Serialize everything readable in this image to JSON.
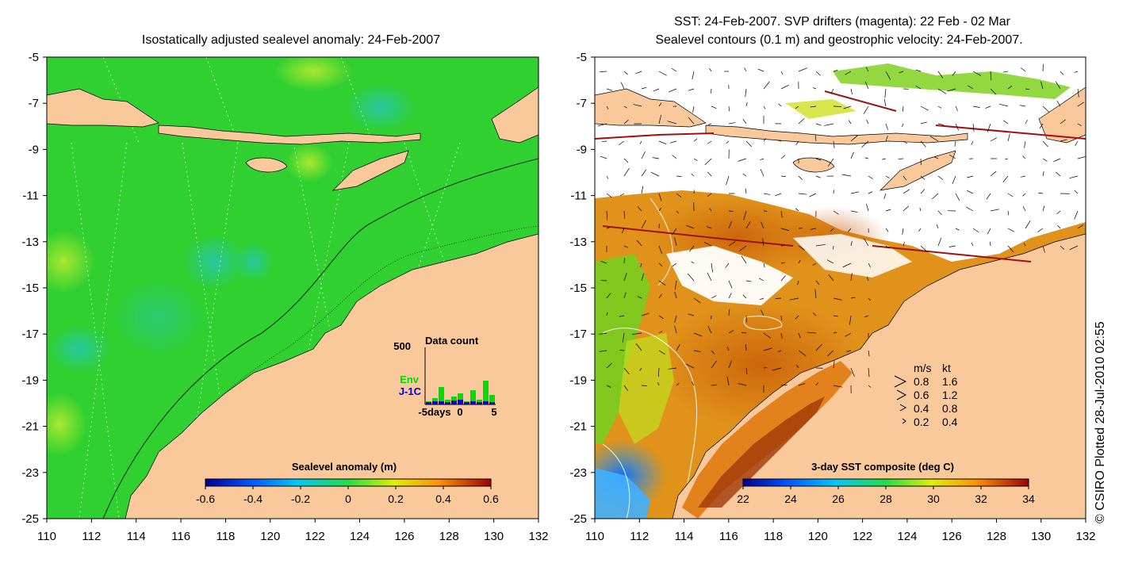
{
  "left_panel": {
    "title": "Isostatically adjusted sealevel anomaly: 24-Feb-2007",
    "colorbar_title": "Sealevel anomaly (m)",
    "colorbar_ticks": [
      "-0.6",
      "-0.4",
      "-0.2",
      "0",
      "0.2",
      "0.4",
      "0.6"
    ],
    "inset": {
      "title": "Data count",
      "ymax": "500",
      "env_label": "Env",
      "j1c_label": "J-1C",
      "xticks": [
        "-5days",
        "0",
        "5"
      ],
      "env_color": "#00dd00",
      "j1c_color": "#0000dd"
    }
  },
  "right_panel": {
    "title_line1": "SST: 24-Feb-2007. SVP drifters (magenta): 22 Feb - 02 Mar",
    "title_line2": "Sealevel contours (0.1 m) and geostrophic velocity: 24-Feb-2007.",
    "colorbar_title": "3-day SST composite (deg C)",
    "colorbar_ticks": [
      "22",
      "24",
      "26",
      "28",
      "30",
      "32",
      "34"
    ],
    "legend": {
      "header_ms": "m/s",
      "header_kt": "kt",
      "rows": [
        {
          "ms": "0.8",
          "kt": "1.6"
        },
        {
          "ms": "0.6",
          "kt": "1.2"
        },
        {
          "ms": "0.4",
          "kt": "0.8"
        },
        {
          "ms": "0.2",
          "kt": "0.4"
        }
      ]
    }
  },
  "axes": {
    "lat_ticks": [
      "-5",
      "-7",
      "-9",
      "-11",
      "-13",
      "-15",
      "-17",
      "-19",
      "-21",
      "-23",
      "-25"
    ],
    "lon_ticks": [
      "110",
      "112",
      "114",
      "116",
      "118",
      "120",
      "122",
      "124",
      "126",
      "128",
      "130",
      "132"
    ]
  },
  "credit": "© CSIRO Plotted 28-Jul-2010 02:55",
  "colors": {
    "land": "#f9c89b",
    "sea_green": "#22cc22",
    "sst_orange": "#e08a10",
    "sst_dark": "#b84a0a"
  }
}
